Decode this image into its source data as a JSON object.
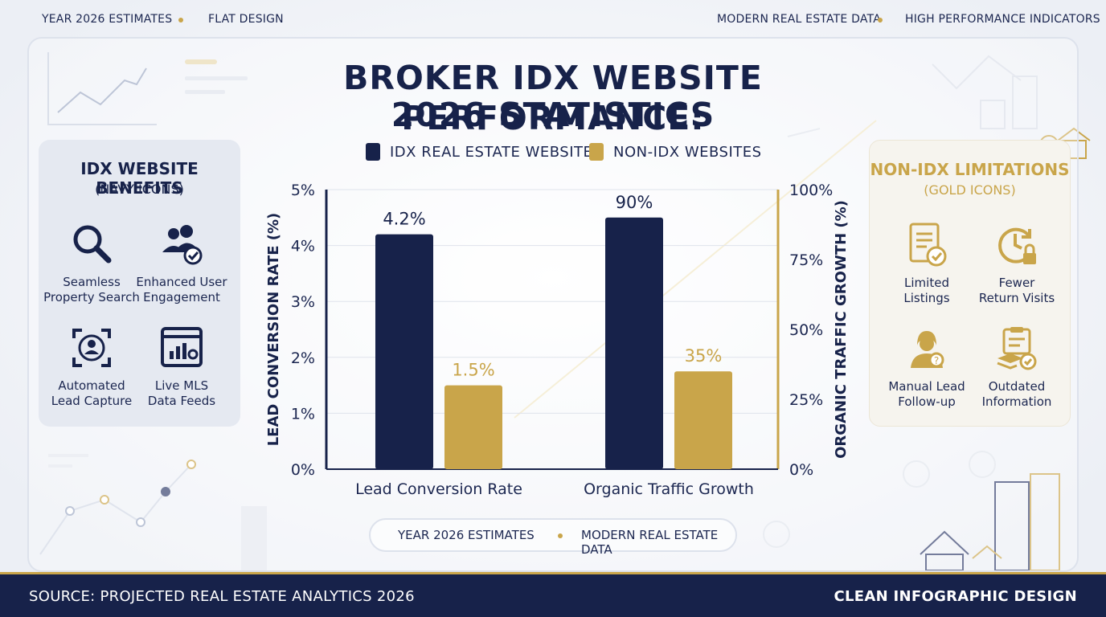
{
  "top_bar": {
    "left_1": "YEAR 2026 ESTIMATES",
    "left_2": "FLAT DESIGN",
    "right_1": "MODERN REAL ESTATE DATA",
    "right_2": "HIGH PERFORMANCE INDICATORS"
  },
  "title": {
    "line1": "BROKER IDX WEBSITE PERFORMANCE:",
    "line2": "2026 STATISTICS"
  },
  "legend": [
    {
      "label": "IDX REAL ESTATE WEBSITES",
      "color": "#17224a"
    },
    {
      "label": "NON-IDX WEBSITES",
      "color": "#c9a54a"
    }
  ],
  "left_panel": {
    "title": "IDX WEBSITE BENEFITS",
    "subtitle": "(NAVY ICONS)",
    "items": [
      {
        "label1": "Seamless",
        "label2": "Property Search",
        "icon": "magnifier-icon"
      },
      {
        "label1": "Enhanced User",
        "label2": "Engagement",
        "icon": "users-check-icon"
      },
      {
        "label1": "Automated",
        "label2": "Lead Capture",
        "icon": "lead-capture-icon"
      },
      {
        "label1": "Live MLS",
        "label2": "Data Feeds",
        "icon": "browser-chart-icon"
      }
    ]
  },
  "right_panel": {
    "title": "NON-IDX LIMITATIONS",
    "subtitle": "(GOLD ICONS)",
    "items": [
      {
        "label1": "Limited",
        "label2": "Listings",
        "icon": "checklist-icon"
      },
      {
        "label1": "Fewer",
        "label2": "Return Visits",
        "icon": "clock-lock-icon"
      },
      {
        "label1": "Manual Lead",
        "label2": "Follow-up",
        "icon": "agent-question-icon"
      },
      {
        "label1": "Outdated",
        "label2": "Information",
        "icon": "clipboard-stack-icon"
      }
    ]
  },
  "chart_data": {
    "type": "bar",
    "categories": [
      "Lead Conversion Rate",
      "Organic Traffic Growth"
    ],
    "series": [
      {
        "name": "IDX REAL ESTATE WEBSITES",
        "values": [
          4.2,
          90
        ],
        "labels": [
          "4.2%",
          "90%"
        ],
        "color": "#17224a"
      },
      {
        "name": "NON-IDX WEBSITES",
        "values": [
          1.5,
          35
        ],
        "labels": [
          "1.5%",
          "35%"
        ],
        "color": "#c9a54a"
      }
    ],
    "axes": {
      "left": {
        "label": "LEAD CONVERSION RATE (%)",
        "ylim": [
          0,
          5
        ],
        "ticks": [
          "0%",
          "1%",
          "2%",
          "3%",
          "4%",
          "5%"
        ]
      },
      "right": {
        "label": "ORGANIC TRAFFIC GROWTH (%)",
        "ylim": [
          0,
          100
        ],
        "ticks": [
          "0%",
          "25%",
          "50%",
          "75%",
          "100%"
        ]
      }
    },
    "grid": true,
    "legend_position": "top"
  },
  "footer_pill": {
    "left": "YEAR 2026 ESTIMATES",
    "right": "MODERN REAL ESTATE DATA"
  },
  "bottom_bar": {
    "source": "SOURCE: PROJECTED REAL ESTATE ANALYTICS 2026",
    "credit": "CLEAN INFOGRAPHIC DESIGN"
  },
  "colors": {
    "navy": "#17224a",
    "gold": "#c9a54a"
  }
}
